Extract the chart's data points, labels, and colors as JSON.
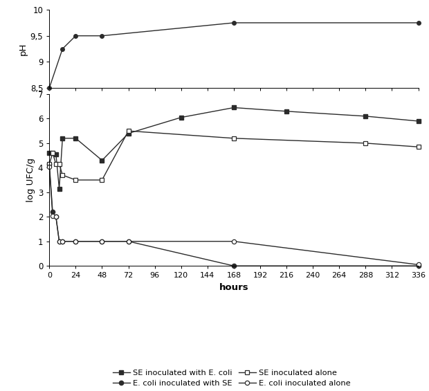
{
  "ph_data": {
    "x": [
      0,
      12,
      24,
      48,
      168,
      336
    ],
    "y": [
      8.5,
      9.25,
      9.5,
      9.5,
      9.75,
      9.75
    ]
  },
  "se_with_ecoli": {
    "x": [
      0,
      3,
      6,
      9,
      12,
      24,
      48,
      72,
      120,
      168,
      216,
      288,
      336
    ],
    "y": [
      4.6,
      4.6,
      4.55,
      3.15,
      5.2,
      5.2,
      4.3,
      5.4,
      6.05,
      6.45,
      6.3,
      6.1,
      5.9
    ]
  },
  "ecoli_with_se": {
    "x": [
      0,
      3,
      6,
      9,
      12,
      24,
      48,
      72,
      168,
      336
    ],
    "y": [
      4.15,
      2.2,
      2.0,
      1.0,
      1.0,
      1.0,
      1.0,
      1.0,
      0.0,
      0.0
    ]
  },
  "se_alone": {
    "x": [
      0,
      3,
      6,
      9,
      12,
      24,
      48,
      72,
      168,
      288,
      336
    ],
    "y": [
      4.15,
      4.6,
      4.15,
      4.15,
      3.7,
      3.5,
      3.5,
      5.5,
      5.2,
      5.0,
      4.85
    ]
  },
  "ecoli_alone": {
    "x": [
      0,
      3,
      6,
      9,
      12,
      24,
      48,
      72,
      168,
      336
    ],
    "y": [
      4.05,
      2.05,
      2.0,
      1.0,
      1.0,
      1.0,
      1.0,
      1.0,
      1.0,
      0.05
    ]
  },
  "x_ticks": [
    0,
    24,
    48,
    72,
    96,
    120,
    144,
    168,
    192,
    216,
    240,
    264,
    288,
    312,
    336
  ],
  "x_tick_labels": [
    "0",
    "24",
    "48",
    "72",
    "96",
    "120",
    "144",
    "168",
    "192",
    "216",
    "240",
    "264",
    "288",
    "312",
    "336"
  ],
  "xlabel": "hours",
  "ylabel_ph": "pH",
  "ylabel_log": "log UFC/g",
  "ph_ylim": [
    8.5,
    10
  ],
  "log_ylim": [
    0,
    7
  ],
  "ph_yticks": [
    8.5,
    9,
    9.5,
    10
  ],
  "log_yticks": [
    0,
    1,
    2,
    3,
    4,
    5,
    6,
    7
  ],
  "line_color": "#2b2b2b",
  "legend_entries": [
    "SE inoculated with E. coli",
    "E. coli inoculated with SE",
    "SE inoculated alone",
    "E. coli inoculated alone"
  ],
  "figsize": [
    6.2,
    5.65
  ],
  "dpi": 100
}
